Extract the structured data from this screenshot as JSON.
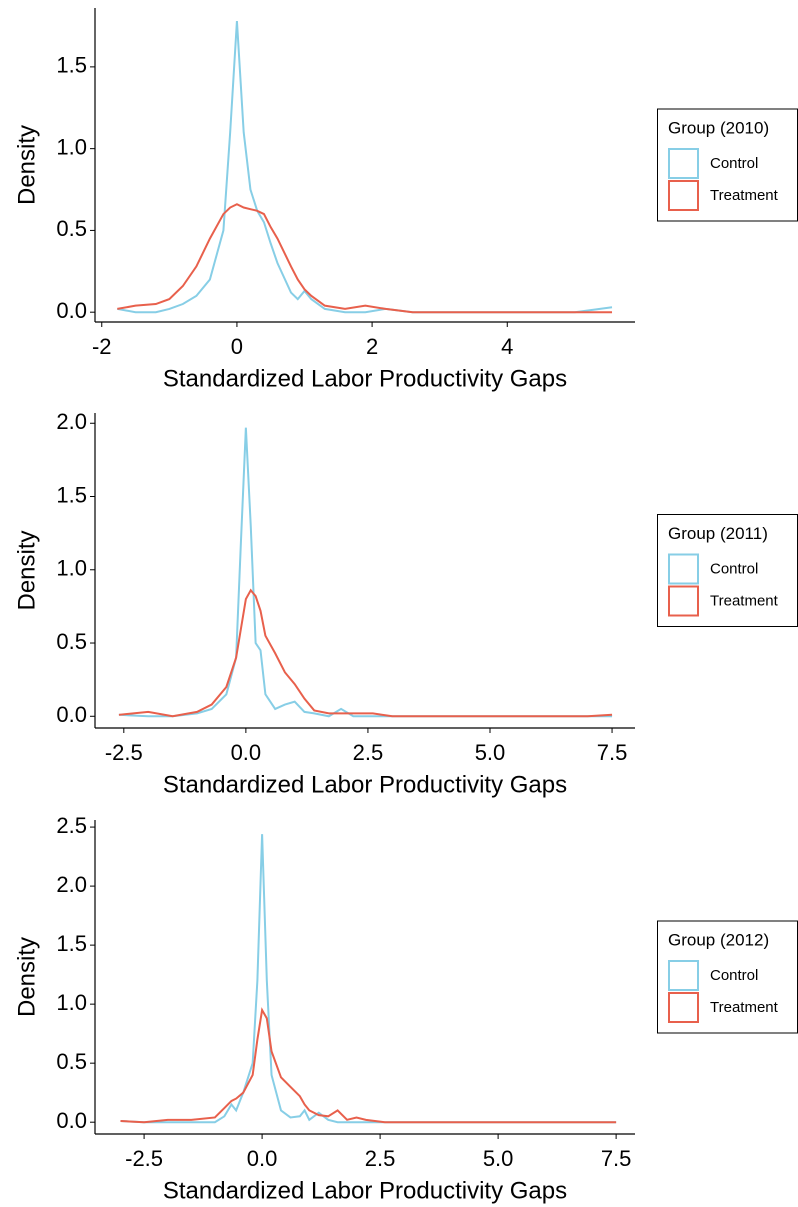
{
  "chart_data": [
    {
      "type": "line",
      "x_label": "Standardized Labor Productivity Gaps",
      "y_label": "Density",
      "legend_title": "Group (2010)",
      "legend": "right",
      "x": [
        -1.77,
        -1.5,
        -1.2,
        -1.0,
        -0.8,
        -0.6,
        -0.4,
        -0.2,
        -0.1,
        0,
        0.1,
        0.2,
        0.3,
        0.4,
        0.5,
        0.6,
        0.8,
        0.9,
        1.0,
        1.1,
        1.3,
        1.6,
        1.9,
        2.2,
        2.6,
        3,
        4,
        5,
        5.55
      ],
      "series": [
        {
          "name": "Control",
          "color": "#87cee6",
          "values": [
            0.02,
            0,
            0,
            0.02,
            0.05,
            0.1,
            0.2,
            0.5,
            1.1,
            1.78,
            1.1,
            0.75,
            0.62,
            0.55,
            0.42,
            0.3,
            0.12,
            0.08,
            0.13,
            0.08,
            0.02,
            0,
            0,
            0.02,
            0,
            0,
            0,
            0,
            0.03
          ]
        },
        {
          "name": "Treatment",
          "color": "#e8604c",
          "values": [
            0.02,
            0.04,
            0.05,
            0.08,
            0.16,
            0.28,
            0.45,
            0.6,
            0.64,
            0.66,
            0.64,
            0.63,
            0.62,
            0.6,
            0.52,
            0.45,
            0.28,
            0.2,
            0.14,
            0.1,
            0.04,
            0.02,
            0.04,
            0.02,
            0,
            0,
            0,
            0,
            0
          ]
        }
      ],
      "xlim": [
        -2.1,
        5.89
      ],
      "ylim": [
        -0.06,
        1.86
      ],
      "xticks": [
        -2,
        0,
        2,
        4
      ],
      "yticks": [
        {
          "value": 0,
          "label": "0.0"
        },
        0.5,
        {
          "value": 1,
          "label": "1.0"
        },
        1.5
      ]
    },
    {
      "type": "line",
      "x_label": "Standardized Labor Productivity Gaps",
      "y_label": "Density",
      "legend_title": "Group (2011)",
      "legend": "right",
      "x": [
        -2.6,
        -2,
        -1.5,
        -1,
        -0.7,
        -0.4,
        -0.2,
        -0.1,
        0,
        0.1,
        0.2,
        0.3,
        0.4,
        0.6,
        0.8,
        1.0,
        1.2,
        1.4,
        1.7,
        1.95,
        2.2,
        2.6,
        3,
        4,
        5,
        6,
        7,
        7.5
      ],
      "series": [
        {
          "name": "Control",
          "color": "#87cee6",
          "values": [
            0.01,
            0,
            0,
            0.02,
            0.05,
            0.15,
            0.4,
            1.2,
            1.97,
            1.3,
            0.5,
            0.45,
            0.15,
            0.05,
            0.08,
            0.1,
            0.03,
            0.02,
            0,
            0.05,
            0,
            0,
            0,
            0,
            0,
            0,
            0,
            0
          ]
        },
        {
          "name": "Treatment",
          "color": "#e8604c",
          "values": [
            0.01,
            0.03,
            0,
            0.03,
            0.08,
            0.2,
            0.4,
            0.6,
            0.8,
            0.86,
            0.82,
            0.72,
            0.55,
            0.43,
            0.3,
            0.22,
            0.12,
            0.04,
            0.02,
            0.02,
            0.02,
            0.02,
            0,
            0,
            0,
            0,
            0,
            0.01
          ]
        }
      ],
      "xlim": [
        -3.09,
        7.97
      ],
      "ylim": [
        -0.08,
        2.07
      ],
      "xticks": [
        -2.5,
        {
          "value": 0,
          "label": "0.0"
        },
        2.5,
        {
          "value": 5,
          "label": "5.0"
        },
        7.5
      ],
      "yticks": [
        {
          "value": 0,
          "label": "0.0"
        },
        0.5,
        {
          "value": 1,
          "label": "1.0"
        },
        1.5,
        {
          "value": 2,
          "label": "2.0"
        }
      ]
    },
    {
      "type": "line",
      "x_label": "Standardized Labor Productivity Gaps",
      "y_label": "Density",
      "legend_title": "Group (2012)",
      "legend": "right",
      "x": [
        -3,
        -2.5,
        -2,
        -1.5,
        -1,
        -0.8,
        -0.65,
        -0.55,
        -0.4,
        -0.2,
        -0.1,
        0,
        0.1,
        0.2,
        0.4,
        0.6,
        0.8,
        0.9,
        1.0,
        1.2,
        1.4,
        1.6,
        1.8,
        2.0,
        2.2,
        2.6,
        3,
        4,
        5,
        6,
        7,
        7.5
      ],
      "series": [
        {
          "name": "Control",
          "color": "#87cee6",
          "values": [
            0.01,
            0,
            0,
            0,
            0,
            0.05,
            0.15,
            0.1,
            0.25,
            0.5,
            1.2,
            2.44,
            1.2,
            0.4,
            0.1,
            0.04,
            0.05,
            0.1,
            0.02,
            0.08,
            0.02,
            0,
            0,
            0,
            0,
            0,
            0,
            0,
            0,
            0,
            0,
            0
          ]
        },
        {
          "name": "Treatment",
          "color": "#e8604c",
          "values": [
            0.01,
            0,
            0.02,
            0.02,
            0.04,
            0.12,
            0.18,
            0.2,
            0.25,
            0.4,
            0.7,
            0.95,
            0.88,
            0.6,
            0.38,
            0.3,
            0.22,
            0.15,
            0.1,
            0.06,
            0.05,
            0.1,
            0.02,
            0.04,
            0.02,
            0,
            0,
            0,
            0,
            0,
            0,
            0
          ]
        }
      ],
      "xlim": [
        -3.54,
        7.9
      ],
      "ylim": [
        -0.1,
        2.56
      ],
      "xticks": [
        -2.5,
        {
          "value": 0,
          "label": "0.0"
        },
        2.5,
        {
          "value": 5,
          "label": "5.0"
        },
        7.5
      ],
      "yticks": [
        {
          "value": 0,
          "label": "0.0"
        },
        0.5,
        {
          "value": 1,
          "label": "1.0"
        },
        1.5,
        {
          "value": 2,
          "label": "2.0"
        },
        2.5
      ]
    }
  ]
}
